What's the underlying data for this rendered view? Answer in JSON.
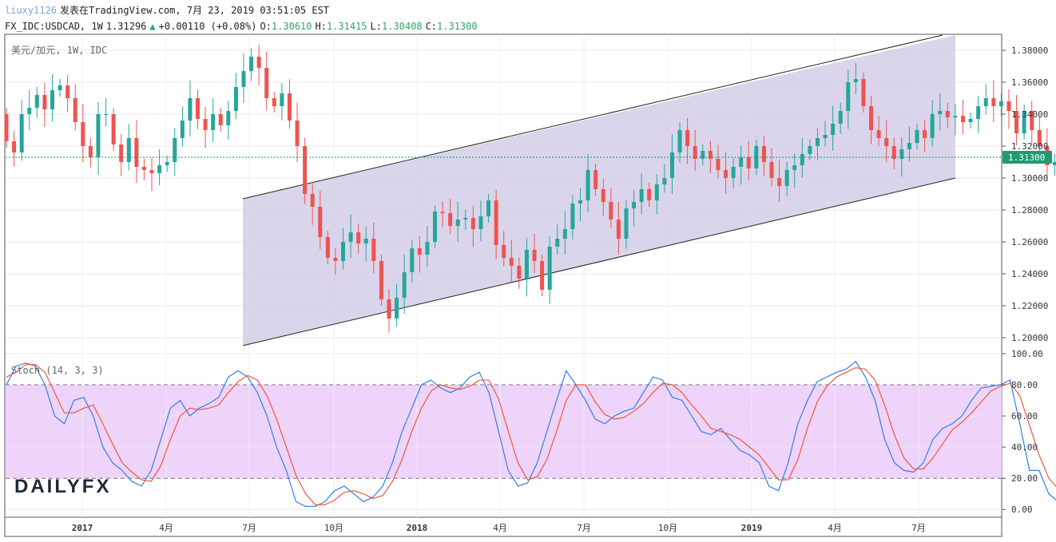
{
  "header": {
    "user": "liuxy1126",
    "published": "发表在TradingView.com, 7月 23, 2019 03:51:05 EST",
    "symbol": "FX_IDC:USDCAD, 1W",
    "last": "1.31296",
    "change": "+0.00110 (+0.08%)",
    "o_label": "O:",
    "o": "1.30610",
    "h_label": "H:",
    "h": "1.31415",
    "l_label": "L:",
    "l": "1.30408",
    "c_label": "C:",
    "c": "1.31300"
  },
  "colors": {
    "up": "#26a69a",
    "down": "#ef5350",
    "channel_fill": "#d6d0e8",
    "stoch_band": "#eed3fb",
    "k_line": "#2f80ed",
    "d_line": "#ef5a3a",
    "price_line": "#1a8f6f",
    "last_label": "#1f9a75"
  },
  "chart_data": [
    {
      "type": "candlestick",
      "title": "美元/加元, 1W, IDC",
      "ylim": [
        1.19,
        1.39
      ],
      "yticks": [
        "1.38000",
        "1.36000",
        "1.34000",
        "1.32000",
        "1.30000",
        "1.28000",
        "1.26000",
        "1.24000",
        "1.22000",
        "1.20000"
      ],
      "last_price_label": "1.31300",
      "x_labels": [
        "2017",
        "4月",
        "7月",
        "10月",
        "2018",
        "4月",
        "7月",
        "10月",
        "2019",
        "4月",
        "7月"
      ],
      "close": [
        1.323,
        1.316,
        1.34,
        1.344,
        1.352,
        1.343,
        1.355,
        1.358,
        1.35,
        1.335,
        1.32,
        1.313,
        1.34,
        1.34,
        1.321,
        1.31,
        1.325,
        1.307,
        1.305,
        1.303,
        1.308,
        1.31,
        1.325,
        1.336,
        1.35,
        1.337,
        1.33,
        1.34,
        1.333,
        1.342,
        1.357,
        1.367,
        1.376,
        1.369,
        1.35,
        1.345,
        1.353,
        1.336,
        1.32,
        1.29,
        1.282,
        1.263,
        1.25,
        1.248,
        1.26,
        1.266,
        1.259,
        1.262,
        1.248,
        1.224,
        1.212,
        1.225,
        1.241,
        1.256,
        1.252,
        1.26,
        1.279,
        1.278,
        1.27,
        1.274,
        1.275,
        1.268,
        1.276,
        1.286,
        1.258,
        1.25,
        1.245,
        1.237,
        1.255,
        1.248,
        1.23,
        1.257,
        1.262,
        1.268,
        1.284,
        1.286,
        1.305,
        1.293,
        1.285,
        1.274,
        1.262,
        1.281,
        1.285,
        1.293,
        1.286,
        1.296,
        1.3,
        1.316,
        1.33,
        1.32,
        1.312,
        1.317,
        1.312,
        1.305,
        1.3,
        1.307,
        1.313,
        1.306,
        1.32,
        1.31,
        1.3,
        1.295,
        1.305,
        1.308,
        1.315,
        1.32,
        1.325,
        1.327,
        1.334,
        1.342,
        1.36,
        1.362,
        1.345,
        1.33,
        1.325,
        1.32,
        1.312,
        1.318,
        1.322,
        1.33,
        1.325,
        1.34,
        1.342,
        1.338,
        1.339,
        1.335,
        1.337,
        1.345,
        1.35,
        1.345,
        1.348,
        1.342,
        1.328,
        1.342,
        1.33,
        1.32,
        1.308,
        1.31,
        1.305,
        1.307,
        1.313
      ],
      "open": [
        1.34,
        1.323,
        1.316,
        1.34,
        1.344,
        1.352,
        1.343,
        1.355,
        1.358,
        1.35,
        1.335,
        1.32,
        1.313,
        1.34,
        1.34,
        1.321,
        1.31,
        1.325,
        1.307,
        1.305,
        1.303,
        1.308,
        1.31,
        1.325,
        1.336,
        1.35,
        1.337,
        1.33,
        1.34,
        1.333,
        1.342,
        1.357,
        1.367,
        1.376,
        1.369,
        1.35,
        1.345,
        1.353,
        1.336,
        1.32,
        1.29,
        1.282,
        1.263,
        1.25,
        1.248,
        1.26,
        1.266,
        1.259,
        1.262,
        1.248,
        1.224,
        1.212,
        1.225,
        1.241,
        1.256,
        1.252,
        1.26,
        1.279,
        1.278,
        1.27,
        1.274,
        1.275,
        1.268,
        1.276,
        1.286,
        1.258,
        1.25,
        1.245,
        1.237,
        1.255,
        1.248,
        1.23,
        1.257,
        1.262,
        1.268,
        1.284,
        1.286,
        1.305,
        1.293,
        1.285,
        1.274,
        1.262,
        1.281,
        1.285,
        1.293,
        1.286,
        1.296,
        1.3,
        1.316,
        1.33,
        1.32,
        1.312,
        1.317,
        1.312,
        1.305,
        1.3,
        1.307,
        1.313,
        1.306,
        1.32,
        1.31,
        1.3,
        1.295,
        1.305,
        1.308,
        1.315,
        1.32,
        1.325,
        1.327,
        1.334,
        1.342,
        1.36,
        1.362,
        1.345,
        1.33,
        1.325,
        1.32,
        1.312,
        1.318,
        1.322,
        1.33,
        1.325,
        1.34,
        1.342,
        1.338,
        1.339,
        1.335,
        1.337,
        1.345,
        1.35,
        1.345,
        1.348,
        1.342,
        1.328,
        1.342,
        1.33,
        1.32,
        1.308,
        1.31,
        1.305,
        1.307
      ]
    },
    {
      "type": "line",
      "title": "Stoch (14, 3, 3)",
      "ylim": [
        -5,
        100
      ],
      "yticks": [
        "100.00",
        "80.00",
        "60.00",
        "40.00",
        "20.00",
        "0.00"
      ],
      "band": [
        20,
        80
      ],
      "series": [
        {
          "name": "K",
          "values": [
            80,
            92,
            94,
            92,
            80,
            60,
            55,
            70,
            72,
            60,
            40,
            30,
            25,
            18,
            15,
            25,
            45,
            65,
            70,
            60,
            65,
            68,
            72,
            85,
            89,
            85,
            75,
            60,
            40,
            25,
            5,
            2,
            2,
            5,
            12,
            15,
            10,
            5,
            8,
            15,
            30,
            50,
            65,
            80,
            83,
            78,
            75,
            78,
            85,
            88,
            75,
            50,
            25,
            15,
            17,
            30,
            50,
            70,
            89,
            80,
            70,
            58,
            55,
            60,
            63,
            65,
            75,
            85,
            83,
            72,
            70,
            60,
            50,
            48,
            52,
            45,
            38,
            35,
            30,
            15,
            12,
            30,
            55,
            70,
            82,
            85,
            88,
            90,
            95,
            85,
            70,
            45,
            30,
            25,
            24,
            30,
            45,
            52,
            55,
            60,
            70,
            78,
            79,
            80,
            83,
            55,
            25,
            25,
            10,
            5,
            5,
            10
          ]
        },
        {
          "name": "D",
          "values": [
            85,
            88,
            93,
            93,
            88,
            75,
            62,
            62,
            65,
            67,
            55,
            42,
            30,
            24,
            19,
            18,
            28,
            45,
            60,
            65,
            64,
            65,
            67,
            75,
            82,
            86,
            83,
            73,
            58,
            40,
            22,
            10,
            3,
            3,
            6,
            11,
            12,
            10,
            7,
            9,
            18,
            32,
            50,
            65,
            76,
            80,
            78,
            77,
            79,
            83,
            83,
            71,
            50,
            30,
            19,
            21,
            32,
            50,
            70,
            80,
            80,
            69,
            61,
            58,
            59,
            63,
            68,
            75,
            81,
            80,
            75,
            67,
            60,
            52,
            50,
            48,
            45,
            40,
            35,
            27,
            19,
            19,
            32,
            52,
            69,
            79,
            85,
            88,
            91,
            90,
            83,
            67,
            48,
            33,
            26,
            26,
            33,
            42,
            51,
            56,
            62,
            69,
            76,
            79,
            81,
            73,
            54,
            35,
            20,
            13,
            7,
            7
          ]
        }
      ]
    }
  ],
  "watermark": "DAILYFX"
}
